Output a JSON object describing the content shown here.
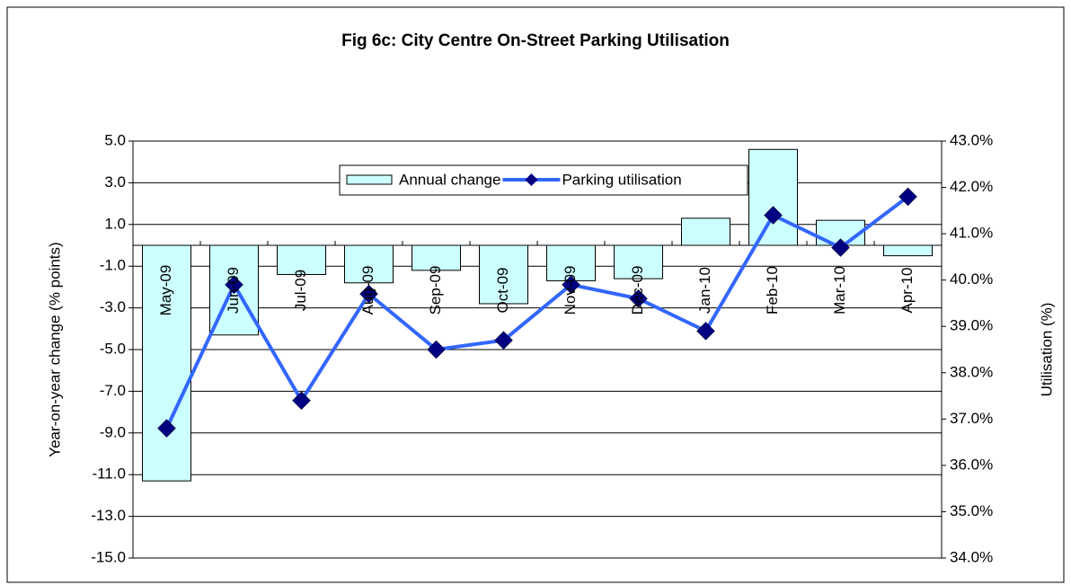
{
  "chart_data": {
    "type": "combo",
    "title": "Fig 6c: City Centre On-Street Parking Utilisation",
    "ylabel": "Year-on-year change (% points)",
    "y2label": "Utilisation (%)",
    "categories": [
      "May-09",
      "Jun-09",
      "Jul-09",
      "Aug-09",
      "Sep-09",
      "Oct-09",
      "Nov-09",
      "Dec-09",
      "Jan-10",
      "Feb-10",
      "Mar-10",
      "Apr-10"
    ],
    "series": [
      {
        "name": "Annual change",
        "type": "bar",
        "color": "#ccffff",
        "values": [
          -11.3,
          -4.3,
          -1.4,
          -1.8,
          -1.2,
          -2.8,
          -1.7,
          -1.6,
          1.3,
          4.6,
          1.2,
          -0.5
        ]
      },
      {
        "name": "Parking utilisation",
        "type": "line",
        "axis": "y2",
        "color": "#3366ff",
        "marker_color": "#000080",
        "values": [
          36.8,
          39.9,
          37.4,
          39.7,
          38.5,
          38.7,
          39.9,
          39.6,
          38.9,
          41.4,
          40.7,
          41.8
        ]
      }
    ],
    "ylim": [
      -15,
      5
    ],
    "yticks": [
      {
        "value": 5,
        "label": "5.0"
      },
      {
        "value": 3,
        "label": "3.0"
      },
      {
        "value": 1,
        "label": "1.0"
      },
      {
        "value": -1,
        "label": "-1.0"
      },
      {
        "value": -3,
        "label": "-3.0"
      },
      {
        "value": -5,
        "label": "-5.0"
      },
      {
        "value": -7,
        "label": "-7.0"
      },
      {
        "value": -9,
        "label": "-9.0"
      },
      {
        "value": -11,
        "label": "-11.0"
      },
      {
        "value": -13,
        "label": "-13.0"
      },
      {
        "value": -15,
        "label": "-15.0"
      }
    ],
    "y2lim": [
      34,
      43
    ],
    "y2ticks": [
      {
        "value": 43,
        "label": "43.0%"
      },
      {
        "value": 42,
        "label": "42.0%"
      },
      {
        "value": 41,
        "label": "41.0%"
      },
      {
        "value": 40,
        "label": "40.0%"
      },
      {
        "value": 39,
        "label": "39.0%"
      },
      {
        "value": 38,
        "label": "38.0%"
      },
      {
        "value": 37,
        "label": "37.0%"
      },
      {
        "value": 36,
        "label": "36.0%"
      },
      {
        "value": 35,
        "label": "35.0%"
      },
      {
        "value": 34,
        "label": "34.0%"
      }
    ],
    "grid": true,
    "legend": "top"
  }
}
